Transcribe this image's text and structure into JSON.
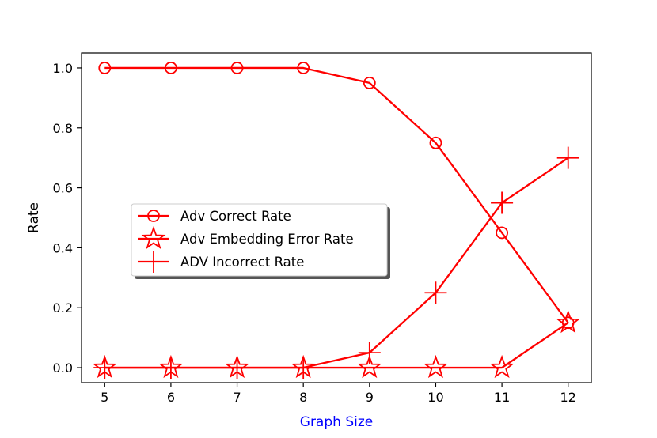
{
  "chart_data": {
    "type": "line",
    "title": "",
    "xlabel": "Graph Size",
    "ylabel": "Rate",
    "x": [
      5,
      6,
      7,
      8,
      9,
      10,
      11,
      12
    ],
    "xlim": [
      4.65,
      12.35
    ],
    "ylim": [
      -0.05,
      1.05
    ],
    "xticks": [
      "5",
      "6",
      "7",
      "8",
      "9",
      "10",
      "11",
      "12"
    ],
    "yticks": [
      "0.0",
      "0.2",
      "0.4",
      "0.6",
      "0.8",
      "1.0"
    ],
    "grid": false,
    "legend_position": "center-left",
    "series": [
      {
        "name": "Adv Correct Rate",
        "marker": "circle",
        "values": [
          1.0,
          1.0,
          1.0,
          1.0,
          0.95,
          0.75,
          0.45,
          0.15
        ]
      },
      {
        "name": "Adv Embedding Error Rate",
        "marker": "star",
        "values": [
          0.0,
          0.0,
          0.0,
          0.0,
          0.0,
          0.0,
          0.0,
          0.15
        ]
      },
      {
        "name": "ADV Incorrect Rate",
        "marker": "plus",
        "values": [
          0.0,
          0.0,
          0.0,
          0.0,
          0.05,
          0.25,
          0.55,
          0.7
        ]
      }
    ],
    "colors": {
      "series": "#ff0000",
      "xlabel": "#0000ff",
      "axes": "#000000"
    }
  }
}
